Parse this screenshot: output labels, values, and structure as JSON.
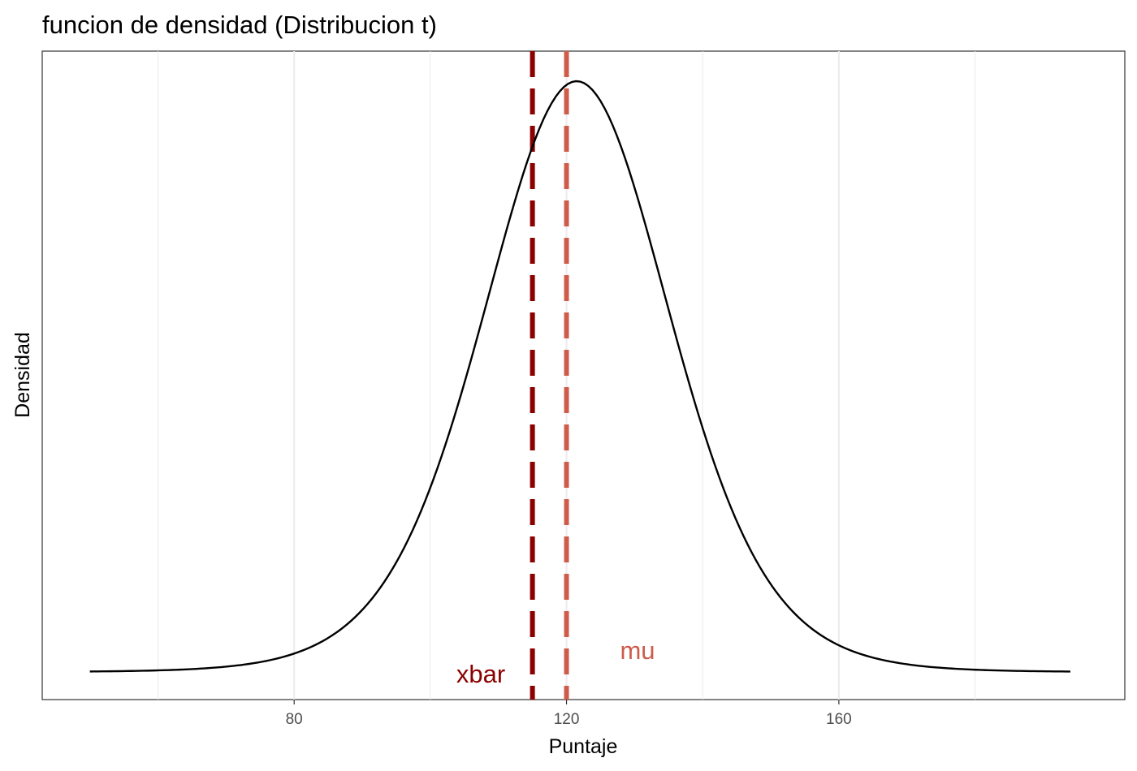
{
  "chart_data": {
    "type": "line",
    "title": "funcion de densidad (Distribucion t)",
    "xlabel": "Puntaje",
    "ylabel": "Densidad",
    "xlim": [
      43,
      202
    ],
    "x_ticks": [
      80,
      120,
      160
    ],
    "x_minor_gridlines": [
      60,
      100,
      140,
      180
    ],
    "y_ticks": [],
    "grid": true,
    "distribution": {
      "name": "t",
      "center": 121.5,
      "scale": 14,
      "x_range": [
        50,
        194
      ]
    },
    "series": [
      {
        "values_x": [
          50,
          60,
          70,
          75,
          80,
          85,
          90,
          95,
          100,
          105,
          110,
          115,
          120,
          121.5,
          125,
          130,
          135,
          140,
          145,
          150,
          155,
          160,
          165,
          170,
          180,
          194
        ],
        "values_y": [
          0.0,
          0.0003,
          0.0026,
          0.0062,
          0.0134,
          0.026,
          0.0452,
          0.069,
          0.0929,
          0.1117,
          0.12,
          0.118,
          0.12,
          0.121,
          0.119,
          0.11,
          0.094,
          0.073,
          0.051,
          0.032,
          0.0178,
          0.0089,
          0.004,
          0.0016,
          0.0002,
          0.0
        ],
        "color": "#000000"
      }
    ],
    "reference_lines": [
      {
        "label": "xbar",
        "x": 115,
        "color": "#8B0000",
        "style": "dashed"
      },
      {
        "label": "mu",
        "x": 120,
        "color": "#CD5C4B",
        "style": "dashed"
      }
    ]
  }
}
